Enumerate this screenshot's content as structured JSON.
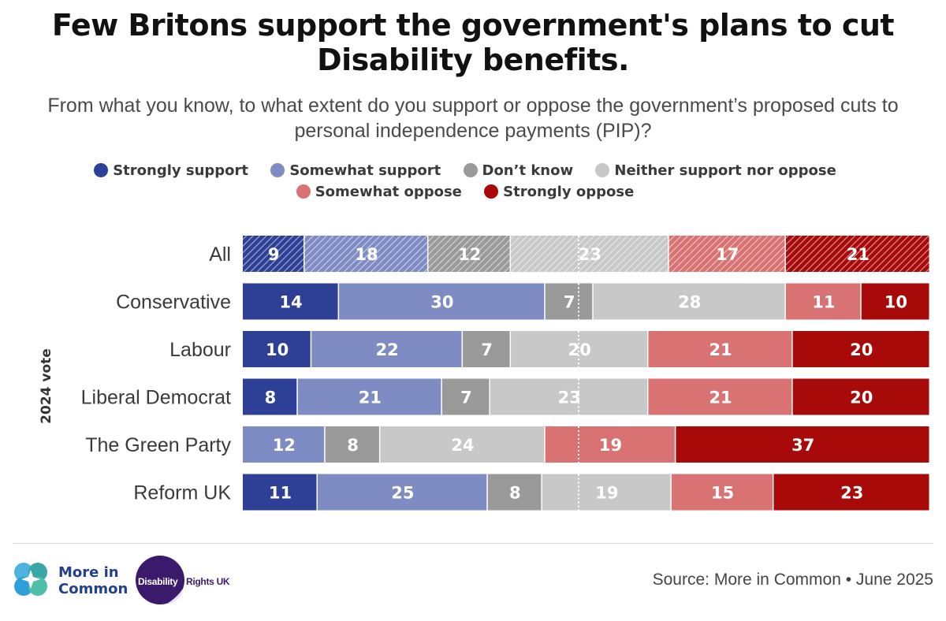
{
  "title": "Few Britons support the government's plans to cut Disability benefits.",
  "subtitle": "From what you know, to what extent do you support or oppose the government’s proposed cuts to personal independence payments (PIP)?",
  "legend": [
    {
      "label": "Strongly support",
      "color": "#2e4096"
    },
    {
      "label": "Somewhat support",
      "color": "#7f8cc4"
    },
    {
      "label": "Don’t know",
      "color": "#9a9a9a"
    },
    {
      "label": "Neither support nor oppose",
      "color": "#c8c8c8"
    },
    {
      "label": "Somewhat oppose",
      "color": "#d97272"
    },
    {
      "label": "Strongly oppose",
      "color": "#a80a0a"
    }
  ],
  "chart_data": {
    "type": "bar",
    "orientation": "horizontal-stacked-100",
    "title": "Few Britons support the government's plans to cut Disability benefits.",
    "ylabel": "2024 vote",
    "categories": [
      "All",
      "Conservative",
      "Labour",
      "Liberal Democrat",
      "The Green Party",
      "Reform UK"
    ],
    "series": [
      {
        "name": "Strongly support",
        "values": [
          9,
          14,
          10,
          8,
          0,
          11
        ]
      },
      {
        "name": "Somewhat support",
        "values": [
          18,
          30,
          22,
          21,
          12,
          25
        ]
      },
      {
        "name": "Don’t know",
        "values": [
          12,
          7,
          7,
          7,
          8,
          8
        ]
      },
      {
        "name": "Neither support nor oppose",
        "values": [
          23,
          28,
          20,
          23,
          24,
          19
        ]
      },
      {
        "name": "Somewhat oppose",
        "values": [
          17,
          11,
          21,
          21,
          19,
          15
        ]
      },
      {
        "name": "Strongly oppose",
        "values": [
          21,
          10,
          20,
          20,
          37,
          23
        ]
      }
    ],
    "colors": [
      "#2e4096",
      "#7f8cc4",
      "#9a9a9a",
      "#c8c8c8",
      "#d97272",
      "#a80a0a"
    ],
    "hatched_rows": [
      "All"
    ],
    "midpoint_marker": true,
    "xlim": [
      0,
      100
    ]
  },
  "footer": {
    "logo1_text_line1": "More in",
    "logo1_text_line2": "Common",
    "logo2_text_a": "Disability",
    "logo2_text_b": "Rights UK",
    "source": "Source: More in Common • June 2025"
  }
}
